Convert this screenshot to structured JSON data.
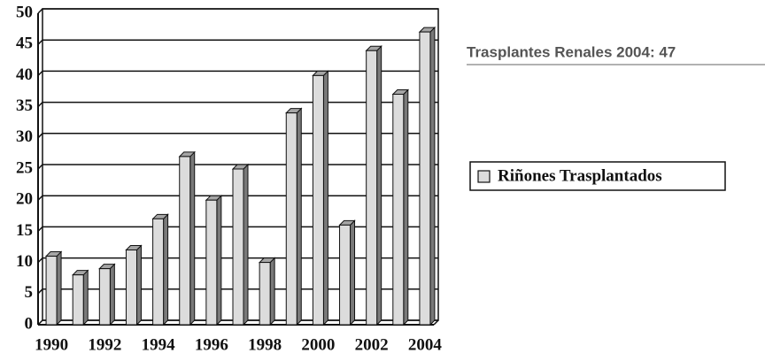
{
  "chart_data": {
    "type": "bar3d",
    "annotation": "Trasplantes Renales 2004: 47",
    "categories": [
      "1990",
      null,
      "1992",
      null,
      "1994",
      null,
      "1996",
      null,
      "1998",
      null,
      "2000",
      null,
      "2002",
      null,
      "2004"
    ],
    "series": [
      {
        "name": "Riñones Trasplantados",
        "color": "#dcdcdc",
        "values": [
          11,
          8,
          9,
          12,
          17,
          27,
          20,
          25,
          10,
          34,
          40,
          16,
          44,
          37,
          47
        ]
      }
    ],
    "ylim": [
      0,
      50
    ],
    "yticks": [
      0,
      5,
      10,
      15,
      20,
      25,
      30,
      35,
      40,
      45,
      50
    ],
    "grid": true,
    "legend": "right"
  }
}
